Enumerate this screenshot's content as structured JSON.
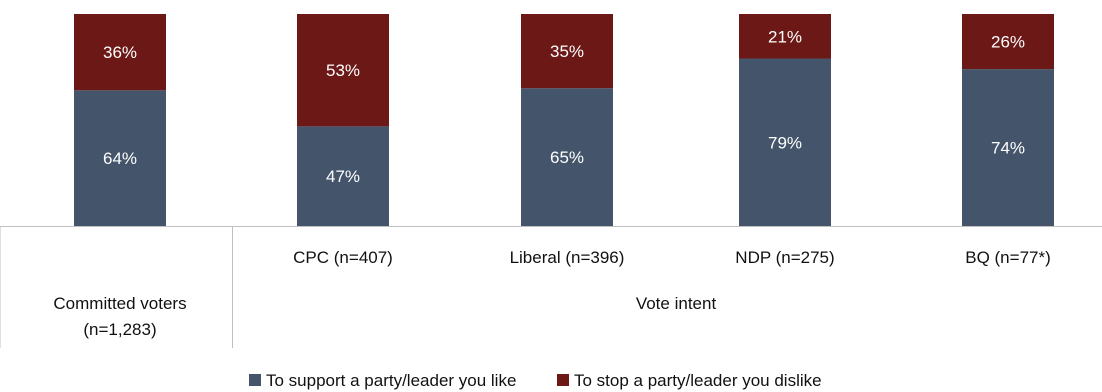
{
  "chart_data": {
    "type": "bar",
    "stacked": true,
    "categories": [
      "Committed voters (n=1,283)",
      "CPC (n=407)",
      "Liberal (n=396)",
      "NDP (n=275)",
      "BQ (n=77*)"
    ],
    "category_lines": [
      [
        "Committed voters",
        "(n=1,283)"
      ],
      [
        "CPC (n=407)"
      ],
      [
        "Liberal (n=396)"
      ],
      [
        "NDP (n=275)"
      ],
      [
        "BQ (n=77*)"
      ]
    ],
    "group_label": "Vote intent",
    "series": [
      {
        "name": "To support a party/leader you like",
        "color": "#44546a",
        "values": [
          64,
          47,
          65,
          79,
          74
        ],
        "labels": [
          "64%",
          "47%",
          "65%",
          "79%",
          "74%"
        ]
      },
      {
        "name": "To stop a party/leader you dislike",
        "color": "#6b1816",
        "values": [
          36,
          53,
          35,
          21,
          26
        ],
        "labels": [
          "36%",
          "53%",
          "35%",
          "21%",
          "26%"
        ]
      }
    ],
    "ylim": [
      0,
      100
    ],
    "grid": false,
    "legend_position": "bottom"
  }
}
